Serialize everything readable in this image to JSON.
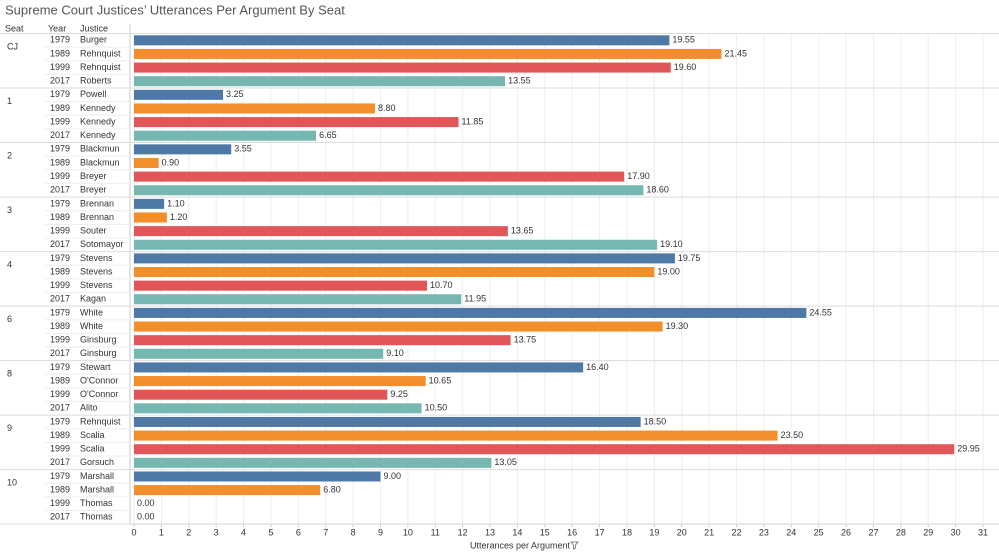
{
  "chart_data": {
    "type": "bar",
    "title": "Supreme Court Justices’ Utterances Per Argument By Seat",
    "row_headers": [
      "Seat",
      "Year",
      "Justice"
    ],
    "x_label": "Utterances per Argument",
    "xlim": [
      0,
      31
    ],
    "xticks": [
      0,
      1,
      2,
      3,
      4,
      5,
      6,
      7,
      8,
      9,
      10,
      11,
      12,
      13,
      14,
      15,
      16,
      17,
      18,
      19,
      20,
      21,
      22,
      23,
      24,
      25,
      26,
      27,
      28,
      29,
      30,
      31
    ],
    "grid": true,
    "seats": [
      "CJ",
      "1",
      "2",
      "3",
      "4",
      "6",
      "8",
      "9",
      "10"
    ],
    "series": [
      {
        "name": "1979",
        "color": "#4e79a7",
        "justices": [
          "Burger",
          "Powell",
          "Blackmun",
          "Brennan",
          "Stevens",
          "White",
          "Stewart",
          "Rehnquist",
          "Marshall"
        ],
        "values": [
          19.55,
          3.25,
          3.55,
          1.1,
          19.75,
          24.55,
          16.4,
          18.5,
          9
        ],
        "value_labels": [
          "19.55",
          "3.25",
          "3.55",
          "1.10",
          "19.75",
          "24.55",
          "16.40",
          "18.50",
          "9.00"
        ]
      },
      {
        "name": "1989",
        "color": "#f28e2b",
        "justices": [
          "Rehnquist",
          "Kennedy",
          "Blackmun",
          "Brennan",
          "Stevens",
          "White",
          "O'Connor",
          "Scalia",
          "Marshall"
        ],
        "values": [
          21.45,
          8.8,
          0.9,
          1.2,
          19,
          19.3,
          10.65,
          23.5,
          6.8
        ],
        "value_labels": [
          "21.45",
          "8.80",
          "0.90",
          "1.20",
          "19.00",
          "19.30",
          "10.65",
          "23.50",
          "6.80"
        ]
      },
      {
        "name": "1999",
        "color": "#e15759",
        "justices": [
          "Rehnquist",
          "Kennedy",
          "Breyer",
          "Souter",
          "Stevens",
          "Ginsburg",
          "O'Connor",
          "Scalia",
          "Thomas"
        ],
        "values": [
          19.6,
          11.85,
          17.9,
          13.65,
          10.7,
          13.75,
          9.25,
          29.95,
          0
        ],
        "value_labels": [
          "19.60",
          "11.85",
          "17.90",
          "13.65",
          "10.70",
          "13.75",
          "9.25",
          "29.95",
          "0.00"
        ]
      },
      {
        "name": "2017",
        "color": "#76b7b2",
        "justices": [
          "Roberts",
          "Kennedy",
          "Breyer",
          "Sotomayor",
          "Kagan",
          "Ginsburg",
          "Alito",
          "Gorsuch",
          "Thomas"
        ],
        "values": [
          13.55,
          6.65,
          18.6,
          19.1,
          11.95,
          9.1,
          10.5,
          13.05,
          0
        ],
        "value_labels": [
          "13.55",
          "6.65",
          "18.60",
          "19.10",
          "11.95",
          "9.10",
          "10.50",
          "13.05",
          "0.00"
        ]
      }
    ]
  }
}
